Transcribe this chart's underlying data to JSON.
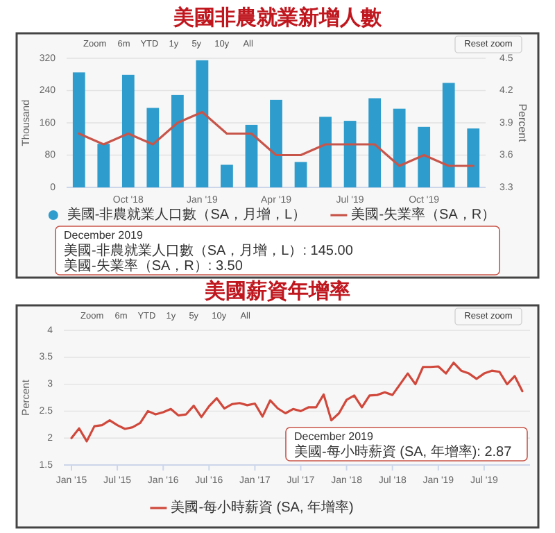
{
  "chart_data": [
    {
      "type": "bar",
      "title": "美國非農就業新增人數",
      "ylabel": "Thousand",
      "y2label": "Percent",
      "categories": [
        null,
        null,
        "Oct '18",
        null,
        null,
        "Jan '19",
        null,
        null,
        "Apr '19",
        null,
        null,
        "Jul '19",
        null,
        null,
        "Oct '19",
        null,
        null
      ],
      "series": [
        {
          "name": "美國-非農就業人口數（SA，月增，L）",
          "color": "#2e9ccc",
          "values": [
            285,
            108,
            279,
            197,
            229,
            315,
            56,
            155,
            217,
            63,
            175,
            165,
            221,
            195,
            150,
            259,
            146
          ]
        },
        {
          "name": "美國-失業率（SA，R）",
          "type": "line",
          "axis": "y2",
          "color": "#c8554a",
          "values": [
            3.8,
            3.7,
            3.8,
            3.7,
            3.9,
            4.0,
            3.8,
            3.8,
            3.6,
            3.6,
            3.7,
            3.7,
            3.7,
            3.5,
            3.6,
            3.5,
            3.5
          ]
        }
      ],
      "ylim": [
        0,
        320
      ],
      "yticks": [
        0,
        80,
        160,
        240,
        320
      ],
      "y2lim": [
        3.3,
        4.5
      ],
      "y2ticks": [
        3.3,
        3.6,
        3.9,
        4.2,
        4.5
      ],
      "grid": "y",
      "legend": "bottom",
      "annotations": [
        "Zoom",
        "6m",
        "YTD",
        "1y",
        "5y",
        "10y",
        "All",
        "Reset zoom",
        "December 2019",
        "美國-非農就業人口數（SA，月增，L）: 145.00",
        "美國-失業率（SA，R）: 3.50"
      ]
    },
    {
      "type": "line",
      "title": "美國薪資年增率",
      "ylabel": "Percent",
      "series": [
        {
          "name": "美國-每小時薪資 (SA, 年增率)",
          "color": "#d0483b",
          "x": [
            "2015-01",
            "2015-02",
            "2015-03",
            "2015-04",
            "2015-05",
            "2015-06",
            "2015-07",
            "2015-08",
            "2015-09",
            "2015-10",
            "2015-11",
            "2015-12",
            "2016-01",
            "2016-02",
            "2016-03",
            "2016-04",
            "2016-05",
            "2016-06",
            "2016-07",
            "2016-08",
            "2016-09",
            "2016-10",
            "2016-11",
            "2016-12",
            "2017-01",
            "2017-02",
            "2017-03",
            "2017-04",
            "2017-05",
            "2017-06",
            "2017-07",
            "2017-08",
            "2017-09",
            "2017-10",
            "2017-11",
            "2017-12",
            "2018-01",
            "2018-02",
            "2018-03",
            "2018-04",
            "2018-05",
            "2018-06",
            "2018-07",
            "2018-08",
            "2018-09",
            "2018-10",
            "2018-11",
            "2018-12",
            "2019-01",
            "2019-02",
            "2019-03",
            "2019-04",
            "2019-05",
            "2019-06",
            "2019-07",
            "2019-08",
            "2019-09",
            "2019-10",
            "2019-11",
            "2019-12"
          ],
          "values": [
            2.0,
            2.18,
            1.94,
            2.22,
            2.24,
            2.33,
            2.24,
            2.17,
            2.2,
            2.28,
            2.5,
            2.44,
            2.48,
            2.54,
            2.42,
            2.44,
            2.6,
            2.39,
            2.59,
            2.74,
            2.55,
            2.63,
            2.65,
            2.61,
            2.64,
            2.4,
            2.7,
            2.55,
            2.46,
            2.54,
            2.5,
            2.57,
            2.57,
            2.81,
            2.33,
            2.46,
            2.71,
            2.79,
            2.57,
            2.79,
            2.8,
            2.85,
            2.8,
            3.0,
            3.2,
            3.0,
            3.32,
            3.32,
            3.33,
            3.2,
            3.4,
            3.25,
            3.2,
            3.1,
            3.2,
            3.25,
            3.23,
            3.0,
            3.15,
            2.87
          ]
        }
      ],
      "xlim": [
        "2014-12",
        "2020-01"
      ],
      "xticks": [
        {
          "value": "2015-01",
          "label": "Jan '15"
        },
        {
          "value": "2015-07",
          "label": "Jul '15"
        },
        {
          "value": "2016-01",
          "label": "Jan '16"
        },
        {
          "value": "2016-07",
          "label": "Jul '16"
        },
        {
          "value": "2017-01",
          "label": "Jan '17"
        },
        {
          "value": "2017-07",
          "label": "Jul '17"
        },
        {
          "value": "2018-01",
          "label": "Jan '18"
        },
        {
          "value": "2018-07",
          "label": "Jul '18"
        },
        {
          "value": "2019-01",
          "label": "Jan '19"
        },
        {
          "value": "2019-07",
          "label": "Jul '19"
        }
      ],
      "ylim": [
        1.5,
        4
      ],
      "yticks": [
        1.5,
        2,
        2.5,
        3,
        3.5,
        4
      ],
      "grid": "y",
      "legend": "bottom",
      "annotations": [
        "Zoom",
        "6m",
        "YTD",
        "1y",
        "5y",
        "10y",
        "All",
        "Reset zoom",
        "December 2019",
        "美國-每小時薪資 (SA, 年增率): 2.87"
      ]
    }
  ]
}
